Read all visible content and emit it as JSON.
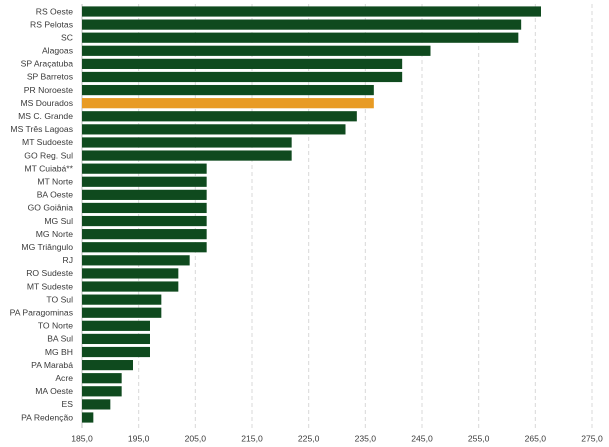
{
  "chart_data": {
    "type": "bar",
    "orientation": "horizontal",
    "title": "",
    "xlabel": "",
    "ylabel": "",
    "xlim": [
      185.0,
      275.0
    ],
    "xticks": [
      "185,0",
      "195,0",
      "205,0",
      "215,0",
      "225,0",
      "235,0",
      "245,0",
      "255,0",
      "265,0",
      "275,0"
    ],
    "grid": true,
    "legend": "none",
    "colors": {
      "default": "#0f4a1e",
      "highlight": "#e89b24"
    },
    "highlight_category": "MS Dourados",
    "categories": [
      "RS Oeste",
      "RS Pelotas",
      "SC",
      "Alagoas",
      "SP Araçatuba",
      "SP Barretos",
      "PR Noroeste",
      "MS Dourados",
      "MS C. Grande",
      "MS Três Lagoas",
      "MT Sudoeste",
      "GO Reg. Sul",
      "MT Cuiabá**",
      "MT Norte",
      "BA Oeste",
      "GO Goiânia",
      "MG Sul",
      "MG Norte",
      "MG Triângulo",
      "RJ",
      "RO Sudeste",
      "MT Sudeste",
      "TO Sul",
      "PA Paragominas",
      "TO Norte",
      "BA Sul",
      "MG BH",
      "PA Marabá",
      "Acre",
      "MA Oeste",
      "ES",
      "PA Redenção"
    ],
    "values": [
      266.0,
      262.5,
      262.0,
      246.5,
      241.5,
      241.5,
      236.5,
      236.5,
      233.5,
      231.5,
      222.0,
      222.0,
      207.0,
      207.0,
      207.0,
      207.0,
      207.0,
      207.0,
      207.0,
      204.0,
      202.0,
      202.0,
      199.0,
      199.0,
      197.0,
      197.0,
      197.0,
      194.0,
      192.0,
      192.0,
      190.0,
      187.0
    ]
  }
}
